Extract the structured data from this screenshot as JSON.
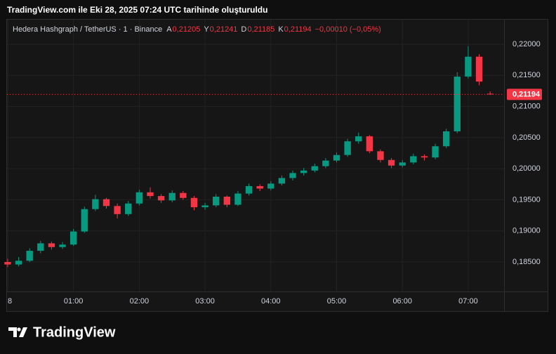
{
  "header": {
    "title": "TradingView.com ile Eki 28, 2025 07:24 UTC tarihinde oluşturuldu"
  },
  "chart_data": {
    "type": "candlestick",
    "legend": {
      "symbol": "Hedera Hashgraph / TetherUS · 1 · Binance",
      "fields": [
        {
          "name": "A",
          "text": "0,21205"
        },
        {
          "name": "Y",
          "text": "0,21241"
        },
        {
          "name": "D",
          "text": "0,21185"
        },
        {
          "name": "K",
          "text": "0,21194"
        }
      ],
      "change": "−0,00010 (−0,05%)"
    },
    "x": [
      0,
      10,
      20,
      30,
      40,
      50,
      60,
      70,
      80,
      90,
      100,
      110,
      120,
      130,
      140,
      150,
      160,
      170,
      180,
      190,
      200,
      210,
      220,
      230,
      240,
      250,
      260,
      270,
      280,
      290,
      300,
      310,
      320,
      330,
      340,
      350,
      360,
      370,
      380,
      390,
      400,
      410,
      420,
      430,
      440
    ],
    "open": [
      0.185,
      0.1846,
      0.1852,
      0.1868,
      0.188,
      0.1874,
      0.1878,
      0.1899,
      0.1935,
      0.1951,
      0.194,
      0.1927,
      0.1944,
      0.1962,
      0.1956,
      0.1949,
      0.1961,
      0.1953,
      0.1938,
      0.1941,
      0.1955,
      0.1942,
      0.196,
      0.1972,
      0.1968,
      0.1976,
      0.1985,
      0.1993,
      0.1997,
      0.2004,
      0.2013,
      0.2022,
      0.2044,
      0.2052,
      0.2028,
      0.2014,
      0.2005,
      0.201,
      0.202,
      0.2018,
      0.2036,
      0.206,
      0.2148,
      0.218,
      0.21205
    ],
    "high": [
      0.1855,
      0.1858,
      0.1872,
      0.1884,
      0.1883,
      0.1882,
      0.1903,
      0.1939,
      0.1958,
      0.1953,
      0.1944,
      0.1948,
      0.1966,
      0.197,
      0.1959,
      0.1965,
      0.1964,
      0.1956,
      0.1945,
      0.1959,
      0.1957,
      0.1964,
      0.1976,
      0.1975,
      0.198,
      0.1989,
      0.1997,
      0.2001,
      0.2008,
      0.2017,
      0.2026,
      0.2048,
      0.2058,
      0.2054,
      0.2031,
      0.2017,
      0.2014,
      0.2024,
      0.2023,
      0.204,
      0.2064,
      0.2155,
      0.2197,
      0.2184,
      0.21241
    ],
    "low": [
      0.1842,
      0.1843,
      0.185,
      0.1864,
      0.187,
      0.1871,
      0.1876,
      0.1897,
      0.1932,
      0.1936,
      0.192,
      0.1924,
      0.1941,
      0.1952,
      0.1945,
      0.1946,
      0.195,
      0.1933,
      0.1934,
      0.1938,
      0.1938,
      0.194,
      0.1957,
      0.1964,
      0.1965,
      0.1973,
      0.1981,
      0.1989,
      0.1994,
      0.2001,
      0.201,
      0.2019,
      0.204,
      0.2025,
      0.201,
      0.2001,
      0.2002,
      0.2007,
      0.2013,
      0.2015,
      0.2033,
      0.2057,
      0.2145,
      0.2134,
      0.21185
    ],
    "close": [
      0.1846,
      0.1852,
      0.1868,
      0.188,
      0.1874,
      0.1878,
      0.1899,
      0.1935,
      0.1951,
      0.194,
      0.1927,
      0.1944,
      0.1962,
      0.1956,
      0.1949,
      0.1961,
      0.1953,
      0.1938,
      0.1941,
      0.1955,
      0.1942,
      0.196,
      0.1972,
      0.1968,
      0.1976,
      0.1985,
      0.1993,
      0.1997,
      0.2004,
      0.2013,
      0.2022,
      0.2044,
      0.2052,
      0.2028,
      0.2014,
      0.2005,
      0.201,
      0.202,
      0.2018,
      0.2036,
      0.206,
      0.2148,
      0.218,
      0.214,
      0.21194
    ],
    "up_color": "#089981",
    "down_color": "#f23645",
    "xlim": [
      -0.6,
      452.7
    ],
    "xticks": [
      {
        "value": 0,
        "label": "8"
      },
      {
        "value": 60,
        "label": "01:00"
      },
      {
        "value": 120,
        "label": "02:00"
      },
      {
        "value": 180,
        "label": "03:00"
      },
      {
        "value": 240,
        "label": "04:00"
      },
      {
        "value": 300,
        "label": "05:00"
      },
      {
        "value": 360,
        "label": "06:00"
      },
      {
        "value": 420,
        "label": "07:00"
      }
    ],
    "ylim": [
      0.18026,
      0.22395
    ],
    "yticks": [
      {
        "value": 0.185,
        "label": "0,18500"
      },
      {
        "value": 0.19,
        "label": "0,19000"
      },
      {
        "value": 0.195,
        "label": "0,19500"
      },
      {
        "value": 0.2,
        "label": "0,20000"
      },
      {
        "value": 0.205,
        "label": "0,20500"
      },
      {
        "value": 0.21,
        "label": "0,21000"
      },
      {
        "value": 0.215,
        "label": "0,21500"
      },
      {
        "value": 0.22,
        "label": "0,22000"
      }
    ],
    "grid": true,
    "last_price": {
      "value": 0.21194,
      "label": "0,21194"
    }
  },
  "footer": {
    "brand": "TradingView"
  }
}
